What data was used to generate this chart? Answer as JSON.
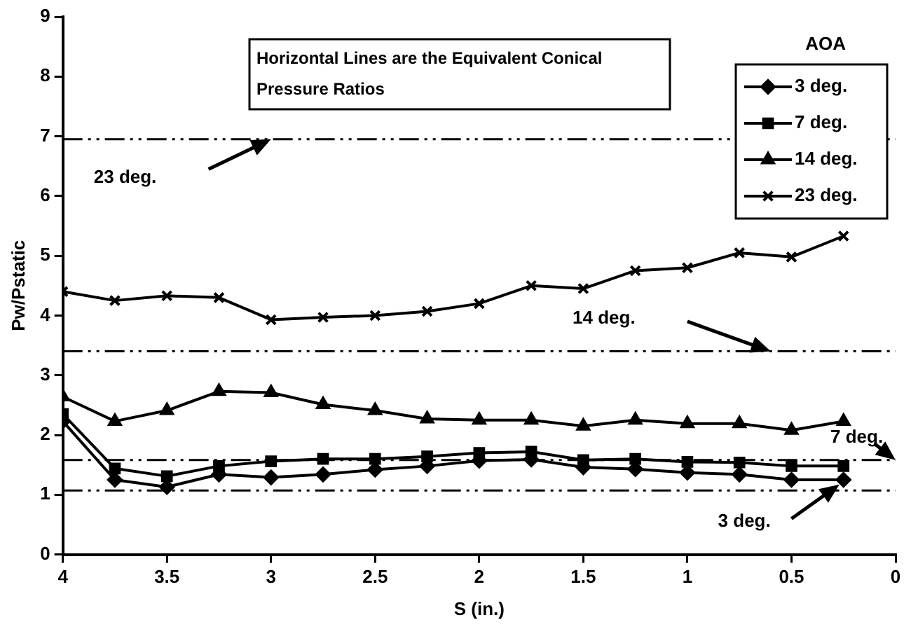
{
  "chart_data": {
    "type": "line",
    "xlabel": "S (in.)",
    "ylabel": "Pw/Pstatic",
    "legend_title": "AOA",
    "legend": "top right",
    "grid": false,
    "x": [
      4,
      3.75,
      3.5,
      3.25,
      3,
      2.75,
      2.5,
      2.25,
      2,
      1.75,
      1.5,
      1.25,
      1,
      0.75,
      0.5,
      0.25
    ],
    "xlim": [
      4,
      0
    ],
    "xticks": [
      4,
      3.5,
      3,
      2.5,
      2,
      1.5,
      1,
      0.5,
      0
    ],
    "ylim": [
      0,
      9
    ],
    "yticks": [
      0,
      1,
      2,
      3,
      4,
      5,
      6,
      7,
      8,
      9
    ],
    "series": [
      {
        "name": "3 deg.",
        "color": "#000000",
        "marker": "diamond",
        "values": [
          2.23,
          1.25,
          1.13,
          1.34,
          1.29,
          1.34,
          1.42,
          1.48,
          1.57,
          1.59,
          1.46,
          1.43,
          1.37,
          1.34,
          1.25,
          1.25
        ]
      },
      {
        "name": "7 deg.",
        "color": "#000000",
        "marker": "square",
        "values": [
          2.35,
          1.44,
          1.31,
          1.48,
          1.56,
          1.6,
          1.6,
          1.64,
          1.7,
          1.72,
          1.58,
          1.6,
          1.55,
          1.54,
          1.48,
          1.48
        ]
      },
      {
        "name": "14 deg.",
        "color": "#000000",
        "marker": "triangle",
        "values": [
          2.64,
          2.23,
          2.41,
          2.73,
          2.71,
          2.51,
          2.41,
          2.27,
          2.25,
          2.25,
          2.15,
          2.25,
          2.19,
          2.19,
          2.08,
          2.23
        ]
      },
      {
        "name": "23 deg.",
        "color": "#000000",
        "marker": "cross",
        "values": [
          4.4,
          4.25,
          4.33,
          4.3,
          3.93,
          3.97,
          4.0,
          4.07,
          4.2,
          4.5,
          4.45,
          4.75,
          4.8,
          5.05,
          4.98,
          5.33
        ]
      }
    ],
    "ref_lines": [
      {
        "axis": "y",
        "value": 6.95,
        "label": "23 deg.",
        "line_style": "dashdot"
      },
      {
        "axis": "y",
        "value": 3.4,
        "label": "14 deg.",
        "line_style": "dashdot"
      },
      {
        "axis": "y",
        "value": 1.58,
        "label": "7 deg.",
        "line_style": "dashdot"
      },
      {
        "axis": "y",
        "value": 1.07,
        "label": "3 deg.",
        "line_style": "dashdot"
      }
    ],
    "annotations": [
      "Horizontal Lines are the Equivalent Conical Pressure Ratios"
    ]
  }
}
